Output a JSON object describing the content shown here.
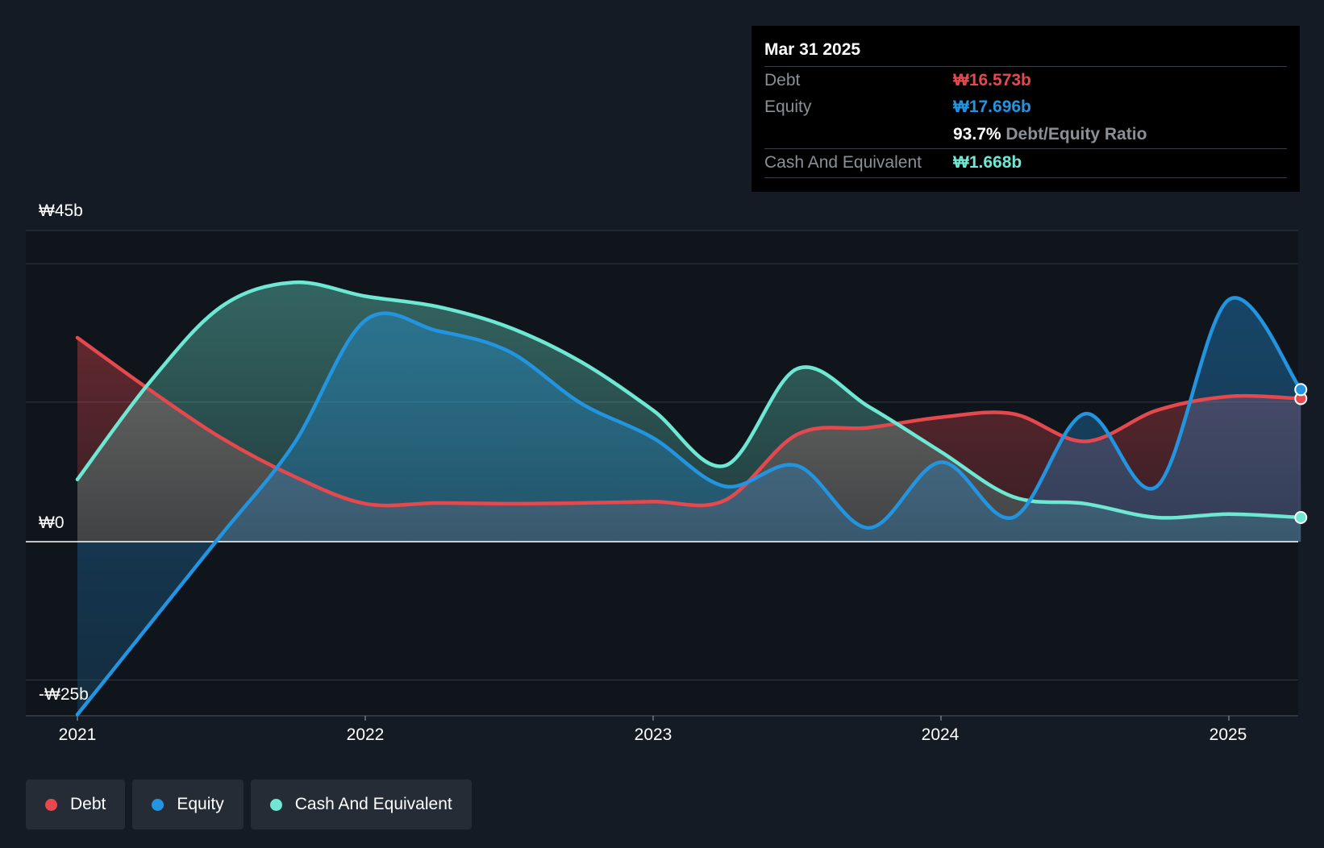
{
  "colors": {
    "background": "#151b24",
    "debt": "#e5484d",
    "equity": "#2394df",
    "cash": "#6ee7d3"
  },
  "chart_data": {
    "type": "area",
    "title": "",
    "xlabel": "",
    "ylabel": "",
    "currency_unit": "₩b",
    "ylim": [
      -25,
      56
    ],
    "y_ticks": [
      {
        "value": 45,
        "label": "₩45b"
      },
      {
        "value": 0,
        "label": "₩0"
      },
      {
        "value": -25,
        "label": "-₩25b"
      }
    ],
    "x_ticks": [
      {
        "value": 2021,
        "label": "2021"
      },
      {
        "value": 2022,
        "label": "2022"
      },
      {
        "value": 2023,
        "label": "2023"
      },
      {
        "value": 2024,
        "label": "2024"
      },
      {
        "value": 2025,
        "label": "2025"
      }
    ],
    "xlim": [
      2020.82,
      2025.25
    ],
    "grid": "horizontal",
    "legend_position": "bottom-left",
    "series": [
      {
        "name": "Debt",
        "color_key": "debt",
        "points": [
          [
            2021.0,
            29.5
          ],
          [
            2021.25,
            22.0
          ],
          [
            2021.5,
            15.0
          ],
          [
            2021.75,
            9.5
          ],
          [
            2022.0,
            5.5
          ],
          [
            2022.25,
            5.6
          ],
          [
            2022.5,
            5.5
          ],
          [
            2022.75,
            5.6
          ],
          [
            2023.0,
            5.8
          ],
          [
            2023.25,
            6.0
          ],
          [
            2023.5,
            15.5
          ],
          [
            2023.75,
            16.5
          ],
          [
            2024.0,
            18.0
          ],
          [
            2024.25,
            18.5
          ],
          [
            2024.5,
            14.5
          ],
          [
            2024.75,
            19.0
          ],
          [
            2025.0,
            21.0
          ],
          [
            2025.25,
            20.7
          ]
        ]
      },
      {
        "name": "Equity",
        "color_key": "equity",
        "points": [
          [
            2021.0,
            -25.0
          ],
          [
            2021.25,
            -12.0
          ],
          [
            2021.5,
            1.0
          ],
          [
            2021.75,
            14.0
          ],
          [
            2022.0,
            32.0
          ],
          [
            2022.25,
            30.5
          ],
          [
            2022.5,
            27.5
          ],
          [
            2022.75,
            20.0
          ],
          [
            2023.0,
            15.0
          ],
          [
            2023.25,
            8.0
          ],
          [
            2023.5,
            11.0
          ],
          [
            2023.75,
            2.0
          ],
          [
            2024.0,
            11.5
          ],
          [
            2024.25,
            3.5
          ],
          [
            2024.5,
            18.5
          ],
          [
            2024.75,
            8.0
          ],
          [
            2025.0,
            35.0
          ],
          [
            2025.25,
            22.0
          ]
        ]
      },
      {
        "name": "Cash And Equivalent",
        "color_key": "cash",
        "points": [
          [
            2021.0,
            9.0
          ],
          [
            2021.25,
            23.0
          ],
          [
            2021.5,
            34.0
          ],
          [
            2021.75,
            37.5
          ],
          [
            2022.0,
            35.5
          ],
          [
            2022.25,
            34.0
          ],
          [
            2022.5,
            31.0
          ],
          [
            2022.75,
            26.0
          ],
          [
            2023.0,
            19.0
          ],
          [
            2023.25,
            11.0
          ],
          [
            2023.5,
            25.0
          ],
          [
            2023.75,
            19.5
          ],
          [
            2024.0,
            13.0
          ],
          [
            2024.25,
            6.5
          ],
          [
            2024.5,
            5.5
          ],
          [
            2024.75,
            3.5
          ],
          [
            2025.0,
            4.0
          ],
          [
            2025.25,
            3.5
          ]
        ]
      }
    ]
  },
  "tooltip": {
    "date": "Mar 31 2025",
    "debt_label": "Debt",
    "debt_value": "₩16.573b",
    "equity_label": "Equity",
    "equity_value": "₩17.696b",
    "ratio_value": "93.7%",
    "ratio_label": "Debt/Equity Ratio",
    "cash_label": "Cash And Equivalent",
    "cash_value": "₩1.668b"
  },
  "legend": {
    "debt": "Debt",
    "equity": "Equity",
    "cash": "Cash And Equivalent"
  }
}
